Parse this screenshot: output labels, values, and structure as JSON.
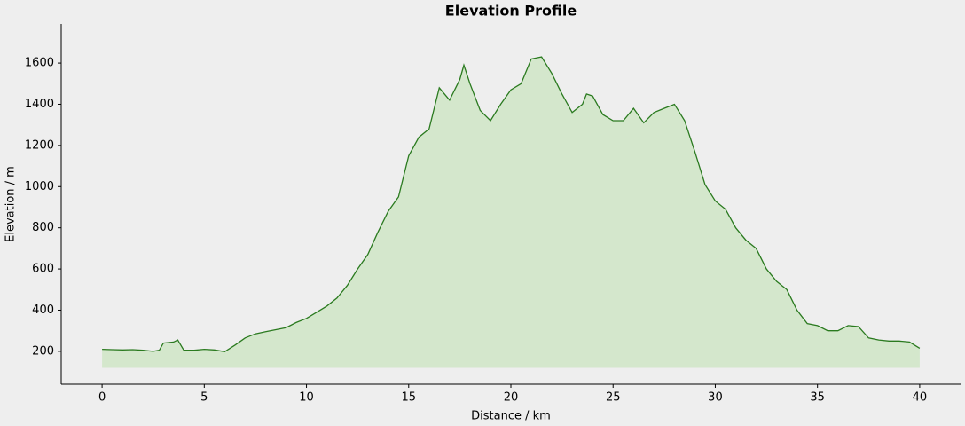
{
  "chart_data": {
    "type": "area",
    "title": "Elevation Profile",
    "xlabel": "Distance / km",
    "ylabel": "Elevation / m",
    "x": [
      0,
      0.5,
      1,
      1.5,
      2,
      2.5,
      2.8,
      3,
      3.5,
      3.7,
      4,
      4.5,
      5,
      5.5,
      6,
      6.5,
      7,
      7.5,
      8,
      8.5,
      9,
      9.5,
      10,
      10.5,
      11,
      11.5,
      12,
      12.5,
      13,
      13.5,
      14,
      14.5,
      15,
      15.5,
      16,
      16.5,
      17,
      17.5,
      17.7,
      18,
      18.5,
      19,
      19.5,
      20,
      20.5,
      21,
      21.5,
      22,
      22.5,
      23,
      23.5,
      23.7,
      24,
      24.5,
      25,
      25.5,
      26,
      26.5,
      27,
      27.5,
      28,
      28.5,
      29,
      29.5,
      30,
      30.5,
      31,
      31.5,
      32,
      32.5,
      33,
      33.5,
      34,
      34.5,
      35,
      35.5,
      36,
      36.5,
      37,
      37.5,
      38,
      38.5,
      39,
      39.5,
      40
    ],
    "values": [
      210,
      208,
      207,
      208,
      205,
      200,
      205,
      240,
      245,
      255,
      205,
      205,
      210,
      207,
      198,
      230,
      265,
      285,
      295,
      305,
      315,
      340,
      360,
      390,
      420,
      460,
      520,
      600,
      670,
      780,
      880,
      950,
      1150,
      1240,
      1280,
      1480,
      1420,
      1520,
      1590,
      1500,
      1370,
      1320,
      1400,
      1470,
      1500,
      1620,
      1630,
      1550,
      1450,
      1360,
      1400,
      1450,
      1440,
      1350,
      1320,
      1320,
      1380,
      1310,
      1360,
      1380,
      1400,
      1320,
      1170,
      1010,
      930,
      890,
      800,
      740,
      700,
      600,
      540,
      500,
      400,
      335,
      325,
      300,
      300,
      325,
      320,
      265,
      255,
      250,
      250,
      245,
      215
    ],
    "line_color": "#2a7a1f",
    "fill_color": "#d4e7cc",
    "fill_to": 120,
    "xlim": [
      -2,
      42
    ],
    "xticks": [
      0,
      5,
      10,
      15,
      20,
      25,
      30,
      35,
      40
    ],
    "ylim": [
      40,
      1790
    ],
    "yticks": [
      200,
      400,
      600,
      800,
      1000,
      1200,
      1400,
      1600
    ]
  }
}
